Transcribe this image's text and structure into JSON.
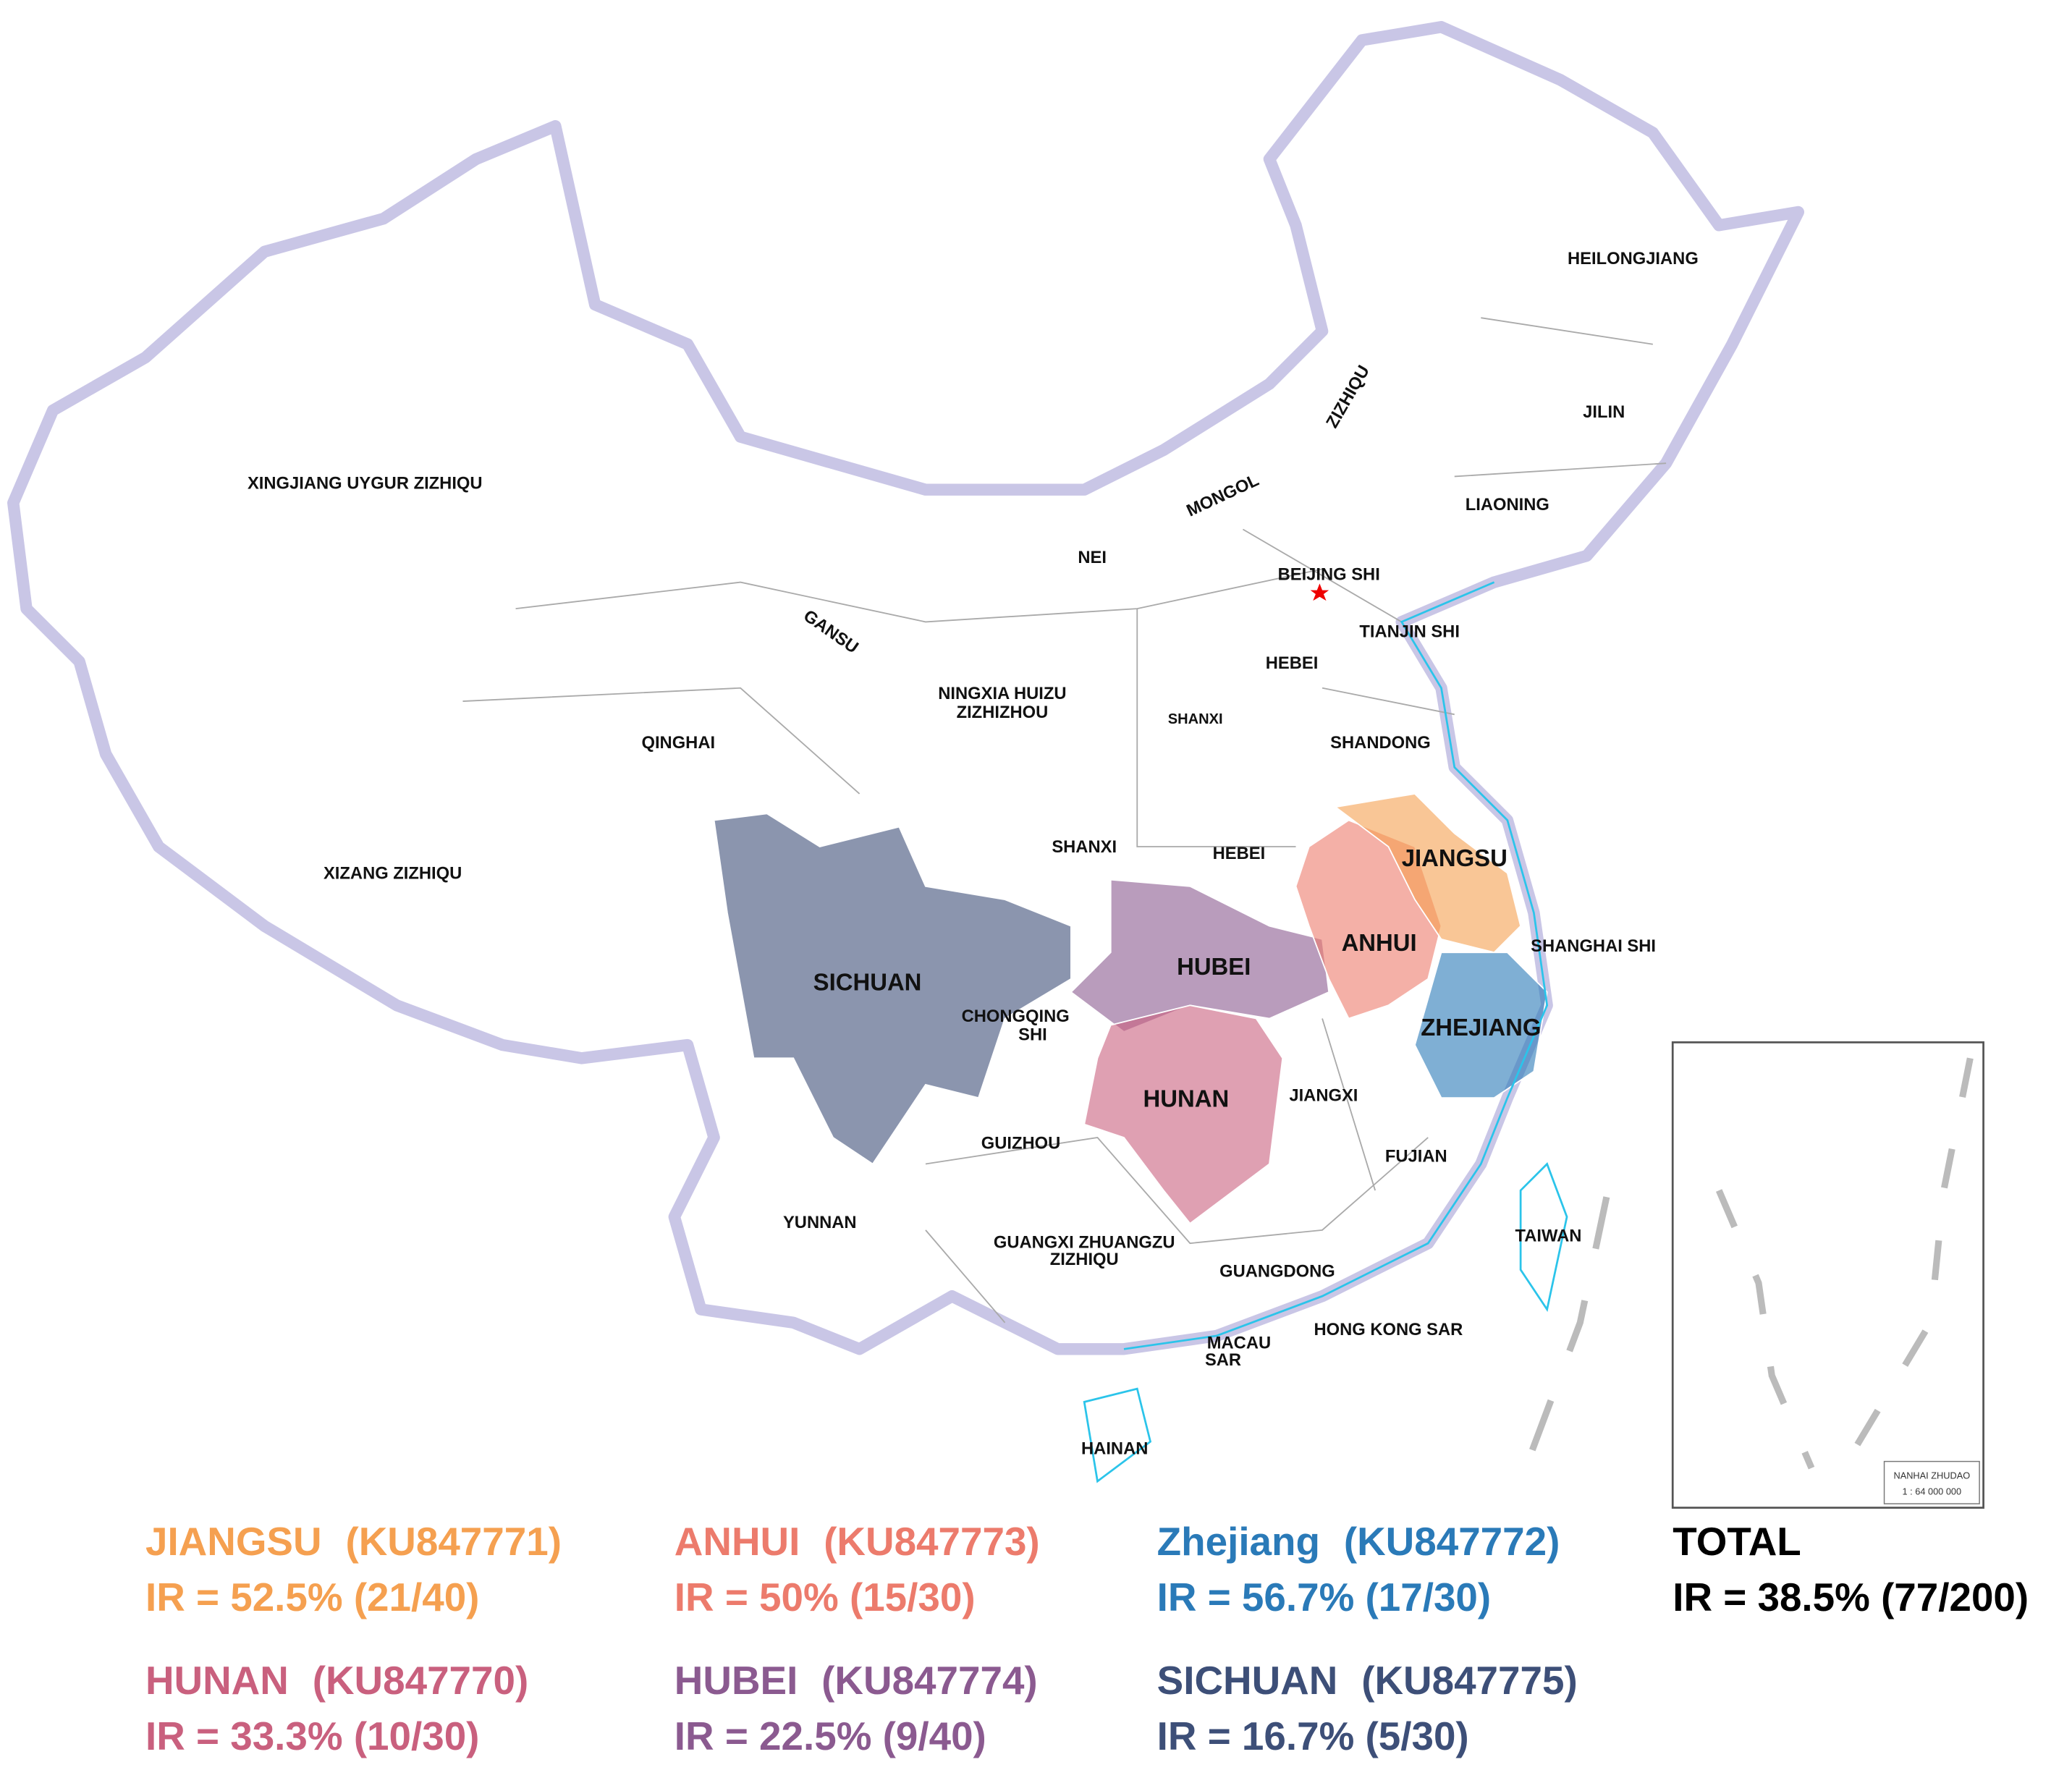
{
  "map_labels": [
    "HEILONGJIANG",
    "JILIN",
    "LIAONING",
    "XINGJIANG UYGUR ZIZHIQU",
    "ZIZHIQU",
    "MONGOL",
    "NEI",
    "BEIJING SHI",
    "TIANJIN SHI",
    "GANSU",
    "HEBEI",
    "NINGXIA HUIZU",
    "ZIZHIZHOU",
    "SHANXI",
    "SHANDONG",
    "QINGHAI",
    "SHANXI",
    "HEBEI",
    "JIANGSU",
    "XIZANG ZIZHIQU",
    "ANHUI",
    "SHANGHAI SHI",
    "SICHUAN",
    "HUBEI",
    "CHONGQING",
    "SHI",
    "ZHEJIANG",
    "HUNAN",
    "JIANGXI",
    "GUIZHOU",
    "FUJIAN",
    "YUNNAN",
    "TAIWAN",
    "GUANGXI ZHUANGZU",
    "ZIZHIQU",
    "GUANGDONG",
    "HONG KONG SAR",
    "MACAU",
    "SAR",
    "HAINAN"
  ],
  "legend": [
    {
      "name": "JIANGSU",
      "accession": "(KU847771)",
      "ir": "IR = 52.5% (21/40)",
      "color": "#f5a050"
    },
    {
      "name": "ANHUI",
      "accession": "(KU847773)",
      "ir": "IR = 50% (15/30)",
      "color": "#ec7b6c"
    },
    {
      "name": "Zhejiang",
      "accession": "(KU847772)",
      "ir": "IR = 56.7% (17/30)",
      "color": "#2a7ab8"
    },
    {
      "name": "TOTAL",
      "ir": "IR = 38.5% (77/200)",
      "color": "#000000"
    },
    {
      "name": "HUNAN",
      "accession": "(KU847770)",
      "ir": "IR = 33.3% (10/30)",
      "color": "#c9607e"
    },
    {
      "name": "HUBEI",
      "accession": "(KU847774)",
      "ir": "IR = 22.5% (9/40)",
      "color": "#8b5a90"
    },
    {
      "name": "SICHUAN",
      "accession": "(KU847775)",
      "ir": "IR = 16.7% (5/30)",
      "color": "#3d4f78"
    }
  ],
  "inset": {
    "title": "NANHAI ZHUDAO",
    "scale": "1 : 64 000 000"
  }
}
